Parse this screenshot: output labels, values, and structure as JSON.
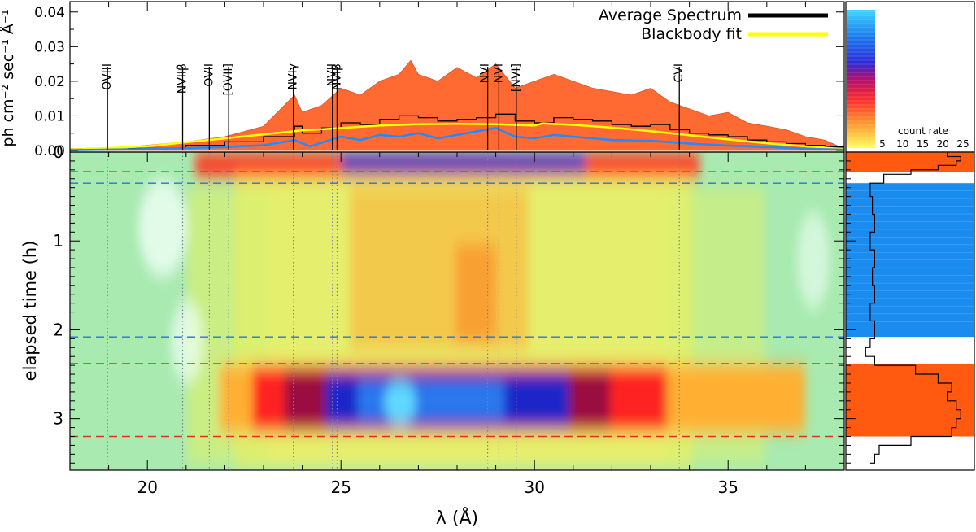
{
  "chart_data": {
    "type": "spectrum-dynamic-spectrum-composite",
    "spectrum_panel": {
      "ylabel": "ph cm⁻² sec⁻¹ Å⁻¹",
      "ylim": [
        0,
        0.043
      ],
      "yticks": [
        "0.00",
        "0.01",
        "0.02",
        "0.03",
        "0.04"
      ],
      "legend": {
        "placement": "top-right",
        "entries": [
          {
            "label": "Average Spectrum",
            "color": "#000000"
          },
          {
            "label": "Blackbody fit",
            "color": "#ffff00"
          }
        ]
      },
      "series": [
        {
          "name": "Maximum envelope",
          "color": "#ff5a1e",
          "x": [
            18.0,
            19.5,
            21.0,
            22.0,
            23.0,
            23.8,
            24.0,
            24.5,
            25.0,
            25.5,
            26.0,
            26.5,
            26.8,
            27.0,
            27.5,
            28.0,
            28.5,
            29.0,
            29.5,
            30.0,
            30.5,
            31.0,
            31.5,
            32.0,
            32.5,
            33.0,
            33.5,
            34.0,
            34.5,
            35.0,
            35.5,
            36.0,
            36.5,
            37.0,
            37.5,
            38.0
          ],
          "y": [
            0.0005,
            0.001,
            0.0025,
            0.004,
            0.007,
            0.016,
            0.011,
            0.013,
            0.018,
            0.016,
            0.02,
            0.022,
            0.026,
            0.022,
            0.02,
            0.024,
            0.021,
            0.025,
            0.018,
            0.02,
            0.022,
            0.02,
            0.018,
            0.017,
            0.016,
            0.018,
            0.014,
            0.012,
            0.01,
            0.011,
            0.008,
            0.007,
            0.006,
            0.004,
            0.003,
            0.0005
          ]
        },
        {
          "name": "Average Spectrum",
          "color": "#000000",
          "x": [
            18.0,
            19.5,
            21.0,
            22.0,
            23.0,
            23.8,
            24.0,
            24.5,
            25.0,
            25.5,
            26.0,
            26.5,
            27.0,
            27.5,
            28.0,
            28.5,
            29.0,
            29.5,
            30.0,
            30.5,
            31.0,
            31.5,
            32.0,
            32.5,
            33.0,
            33.5,
            34.0,
            34.5,
            35.0,
            35.5,
            36.0,
            36.5,
            37.0,
            37.5,
            38.0
          ],
          "y": [
            0.0002,
            0.0006,
            0.0015,
            0.0025,
            0.004,
            0.007,
            0.005,
            0.0065,
            0.008,
            0.0075,
            0.009,
            0.01,
            0.0095,
            0.0085,
            0.009,
            0.0095,
            0.0105,
            0.0085,
            0.008,
            0.0095,
            0.009,
            0.0085,
            0.0075,
            0.007,
            0.0075,
            0.006,
            0.005,
            0.0045,
            0.004,
            0.003,
            0.0025,
            0.002,
            0.0015,
            0.001,
            0.0004
          ]
        },
        {
          "name": "Blackbody fit",
          "color": "#ffff00",
          "x": [
            18.0,
            20.0,
            22.0,
            24.0,
            26.0,
            27.0,
            28.0,
            29.0,
            30.0,
            30.2,
            31.0,
            32.0,
            33.0,
            34.0,
            35.0,
            36.0,
            37.0,
            38.0
          ],
          "y": [
            0.0002,
            0.0012,
            0.0035,
            0.0058,
            0.0072,
            0.0076,
            0.0077,
            0.0076,
            0.0072,
            0.0078,
            0.0074,
            0.0066,
            0.0056,
            0.0044,
            0.0032,
            0.0021,
            0.0012,
            0.0004
          ]
        },
        {
          "name": "Minimum spectrum",
          "color": "#1e8cff",
          "x": [
            18.0,
            20.0,
            22.0,
            23.0,
            23.8,
            24.2,
            25.0,
            25.5,
            26.0,
            26.5,
            27.0,
            27.5,
            28.0,
            28.5,
            29.0,
            29.5,
            30.0,
            30.5,
            31.0,
            31.5,
            32.0,
            33.0,
            34.0,
            35.0,
            36.0,
            37.0,
            38.0
          ],
          "y": [
            0.0001,
            0.0004,
            0.001,
            0.0015,
            0.003,
            0.0012,
            0.004,
            0.003,
            0.0045,
            0.004,
            0.005,
            0.0035,
            0.0045,
            0.0055,
            0.0065,
            0.004,
            0.0035,
            0.0045,
            0.004,
            0.0035,
            0.003,
            0.0028,
            0.002,
            0.0014,
            0.001,
            0.0005,
            0.0002
          ]
        }
      ]
    },
    "line_ids": [
      {
        "label": "OVIII",
        "wavelength": 18.97
      },
      {
        "label": "NVIIβ",
        "wavelength": 20.91
      },
      {
        "label": "OVII",
        "wavelength": 21.6
      },
      {
        "label": "[OVII]",
        "wavelength": 22.1
      },
      {
        "label": "NVIγ",
        "wavelength": 23.77
      },
      {
        "label": "NVII",
        "wavelength": 24.78
      },
      {
        "label": "NVIβ",
        "wavelength": 24.9
      },
      {
        "label": "NVI",
        "wavelength": 28.79
      },
      {
        "label": "NVI",
        "wavelength": 29.08
      },
      {
        "label": "[NVI]",
        "wavelength": 29.53
      },
      {
        "label": "CVI",
        "wavelength": 33.74
      }
    ],
    "dynamic_panel": {
      "xlabel": "λ (Å)",
      "ylabel": "elapsed time (h)",
      "xlim": [
        18,
        38
      ],
      "ylim": [
        0,
        3.58
      ],
      "xticks": [
        "20",
        "25",
        "30",
        "35"
      ],
      "yticks": [
        "0",
        "1",
        "2",
        "3"
      ],
      "red_dashed_times": [
        0.22,
        2.38,
        3.2
      ],
      "blue_dashed_times": [
        0.35,
        2.08
      ],
      "bright_intervals_h": [
        [
          0.0,
          0.22
        ],
        [
          2.38,
          3.2
        ]
      ]
    },
    "colorbar": {
      "title": "count rate",
      "ticks": [
        "5",
        "10",
        "15",
        "20",
        "25"
      ],
      "range": [
        0,
        28
      ]
    },
    "lightcurve_panel": {
      "orange_intervals_h": [
        [
          0.0,
          0.22
        ],
        [
          2.38,
          3.2
        ]
      ],
      "blue_interval_h": [
        0.35,
        2.08
      ],
      "t": [
        0.0,
        0.05,
        0.1,
        0.15,
        0.2,
        0.25,
        0.35,
        0.5,
        0.7,
        0.9,
        1.1,
        1.3,
        1.5,
        1.7,
        1.9,
        2.1,
        2.2,
        2.3,
        2.4,
        2.5,
        2.6,
        2.7,
        2.8,
        2.9,
        3.0,
        3.1,
        3.2,
        3.3,
        3.4,
        3.5
      ],
      "rate": [
        22,
        25,
        24,
        20,
        14,
        8,
        5,
        5.5,
        6,
        5,
        6,
        5.5,
        6,
        5,
        6,
        5,
        4,
        6,
        15,
        20,
        23,
        22,
        24,
        25,
        24,
        23,
        14,
        7,
        6,
        5
      ]
    }
  }
}
